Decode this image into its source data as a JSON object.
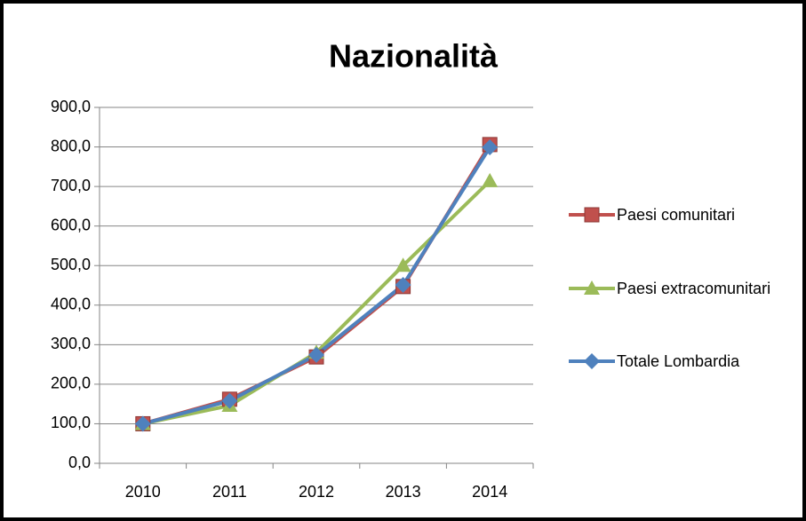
{
  "chart_data": {
    "type": "line",
    "title": "Nazionalità",
    "categories": [
      "2010",
      "2011",
      "2012",
      "2013",
      "2014"
    ],
    "series": [
      {
        "name": "Paesi comunitari",
        "color": "#c0504d",
        "marker": "square",
        "values": [
          100,
          162,
          269,
          447,
          806
        ]
      },
      {
        "name": "Paesi extracomunitari",
        "color": "#9bbb59",
        "marker": "triangle",
        "values": [
          100,
          146,
          280,
          500,
          714
        ]
      },
      {
        "name": "Totale Lombardia",
        "color": "#4f81bd",
        "marker": "diamond",
        "values": [
          100,
          158,
          274,
          451,
          799
        ]
      }
    ],
    "ylim": [
      0,
      900
    ],
    "yticks": [
      {
        "value": 0,
        "label": "0,0"
      },
      {
        "value": 100,
        "label": "100,0"
      },
      {
        "value": 200,
        "label": "200,0"
      },
      {
        "value": 300,
        "label": "300,0"
      },
      {
        "value": 400,
        "label": "400,0"
      },
      {
        "value": 500,
        "label": "500,0"
      },
      {
        "value": 600,
        "label": "600,0"
      },
      {
        "value": 700,
        "label": "700,0"
      },
      {
        "value": 800,
        "label": "800,0"
      },
      {
        "value": 900,
        "label": "900,0"
      }
    ],
    "grid": true,
    "legend": "right"
  }
}
